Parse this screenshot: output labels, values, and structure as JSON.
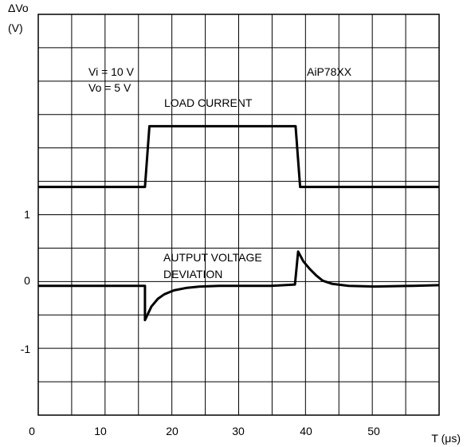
{
  "chart_data": {
    "type": "line",
    "ylabel": "ΔVo",
    "ylabel_unit": "(V)",
    "xlabel": "T (μs)",
    "x_ticks": [
      "0",
      "10",
      "20",
      "30",
      "40",
      "50"
    ],
    "y_ticks": [
      "1",
      "0",
      "-1"
    ],
    "xlim": [
      0,
      62
    ],
    "ylim": [
      -2,
      4.2
    ],
    "grid": true,
    "annotations": {
      "conditions_line1": "Vi = 10 V",
      "conditions_line2": "Vo = 5 V",
      "device": "AiP78XX",
      "load_label": "LOAD CURRENT",
      "output_label_line1": "AUTPUT VOLTAGE",
      "output_label_line2": "DEVIATION"
    },
    "series": [
      {
        "color": "#000000",
        "x": [
          0,
          16.5,
          17.2,
          39.8,
          40.5,
          62
        ],
        "y": [
          1.53,
          1.53,
          2.47,
          2.47,
          1.53,
          1.53
        ]
      },
      {
        "color": "#000000",
        "x": [
          0,
          16.5,
          16.5,
          17.5,
          18.5,
          19.5,
          21,
          23,
          25,
          28,
          32,
          36,
          39.7,
          40.2,
          41,
          42,
          43,
          44,
          45.5,
          48,
          52,
          58,
          62
        ],
        "y": [
          0,
          0,
          -0.53,
          -0.32,
          -0.2,
          -0.13,
          -0.07,
          -0.03,
          -0.01,
          0,
          0,
          0,
          0.02,
          0.53,
          0.38,
          0.26,
          0.16,
          0.08,
          0.03,
          0,
          -0.01,
          0,
          0.01
        ]
      }
    ]
  }
}
